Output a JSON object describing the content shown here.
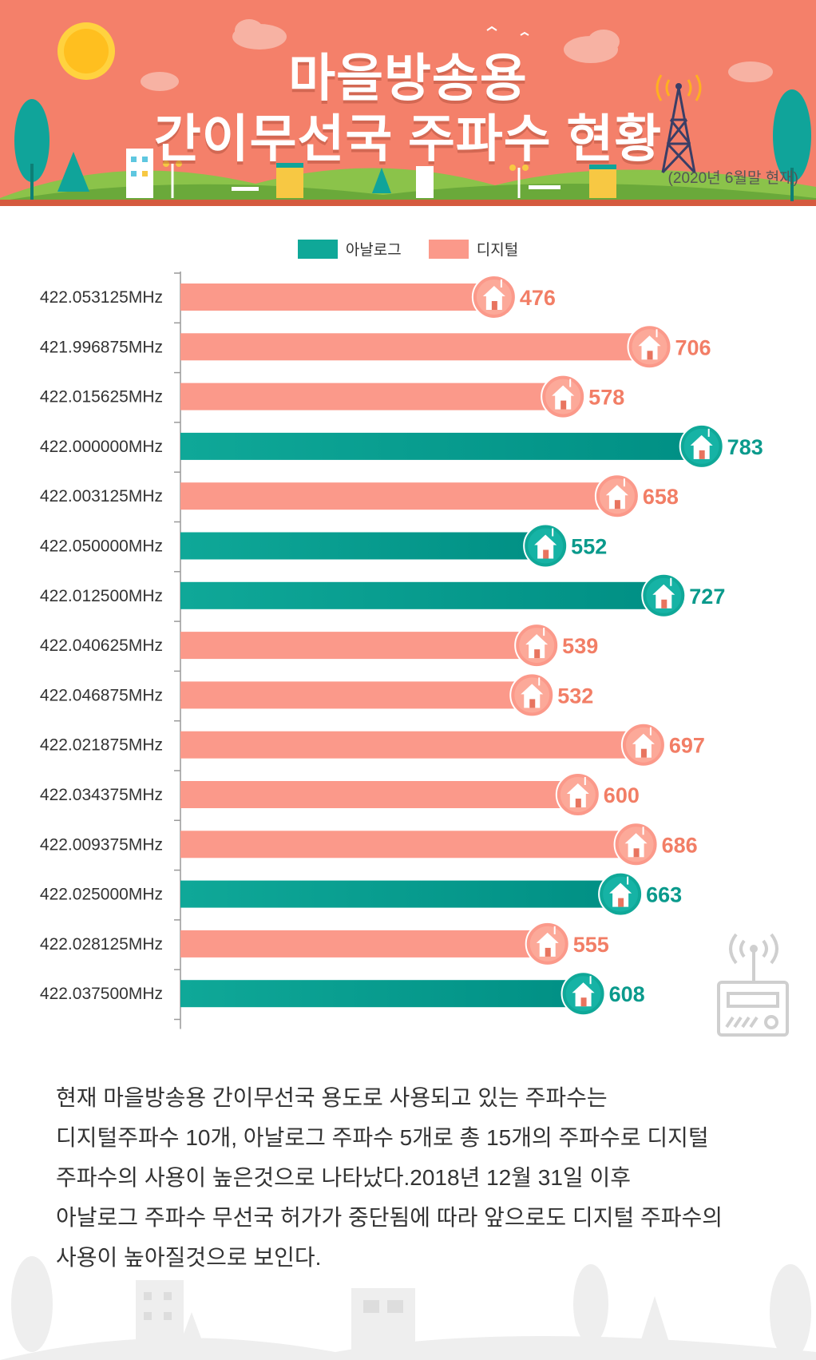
{
  "header": {
    "title_line1": "마을방송용",
    "title_line2": "간이무선국 주파수 현황",
    "date_note": "(2020년 6월말 현재)"
  },
  "legend": {
    "analog": "아날로그",
    "digital": "디지털"
  },
  "colors": {
    "analog": "#0fa898",
    "analog_dark": "#008f84",
    "digital": "#fb998a",
    "digital_dark": "#f0826f",
    "header_bg": "#f4806a",
    "analog_text": "#0a9a8c",
    "digital_text": "#f27e66"
  },
  "chart_data": {
    "type": "bar",
    "orientation": "horizontal",
    "categories": [
      "422.053125MHz",
      "421.996875MHz",
      "422.015625MHz",
      "422.000000MHz",
      "422.003125MHz",
      "422.050000MHz",
      "422.012500MHz",
      "422.040625MHz",
      "422.046875MHz",
      "422.021875MHz",
      "422.034375MHz",
      "422.009375MHz",
      "422.025000MHz",
      "422.028125MHz",
      "422.037500MHz"
    ],
    "values": [
      476,
      706,
      578,
      783,
      658,
      552,
      727,
      539,
      532,
      697,
      600,
      686,
      663,
      555,
      608
    ],
    "kinds": [
      "digital",
      "digital",
      "digital",
      "analog",
      "digital",
      "analog",
      "analog",
      "digital",
      "digital",
      "digital",
      "digital",
      "digital",
      "analog",
      "digital",
      "analog"
    ],
    "series": [
      {
        "name": "아날로그"
      },
      {
        "name": "디지털"
      }
    ],
    "title": "",
    "xlabel": "",
    "ylabel": "",
    "xlim": [
      0,
      820
    ]
  },
  "summary": {
    "lines": [
      "현재 마을방송용 간이무선국 용도로 사용되고 있는 주파수는",
      "디지털주파수 10개, 아날로그 주파수 5개로 총 15개의 주파수로 디지털",
      "주파수의 사용이 높은것으로 나타났다.2018년 12월 31일 이후",
      "아날로그 주파수 무선국 허가가 중단됨에 따라 앞으로도 디지털 주파수의",
      "사용이 높아질것으로 보인다."
    ]
  }
}
